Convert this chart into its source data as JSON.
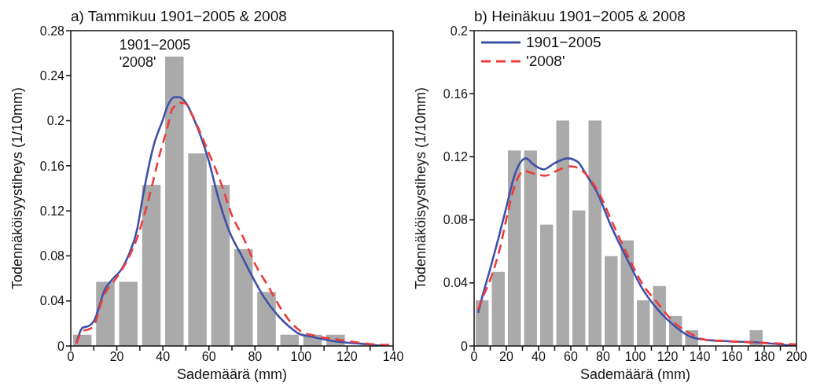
{
  "chart_data": [
    {
      "type": "histogram",
      "title": "a) Tammikuu 1901−2005 & 2008",
      "xlabel": "Sademäärä (mm)",
      "ylabel": "Todennäköisyystiheys (1/10mm)",
      "color": "#aaaaaa",
      "bins": [
        0,
        10,
        20,
        30,
        40,
        50,
        60,
        70,
        80,
        90,
        100,
        110,
        120,
        130,
        140
      ],
      "values": [
        0.01,
        0.057,
        0.057,
        0.143,
        0.257,
        0.171,
        0.143,
        0.086,
        0.048,
        0.01,
        0.01,
        0.01,
        0,
        0
      ],
      "series": [
        {
          "type": "line",
          "color": "#3f51a8",
          "line_style": "solid",
          "x": [
            2.5,
            5,
            8,
            10,
            15,
            18,
            22,
            25,
            29,
            31,
            36,
            40,
            42,
            45,
            47,
            50,
            54,
            60,
            64,
            69,
            74,
            79,
            84,
            90,
            95,
            99,
            105,
            115,
            126,
            136
          ],
          "values": [
            0.003,
            0.016,
            0.018,
            0.022,
            0.051,
            0.059,
            0.068,
            0.08,
            0.105,
            0.129,
            0.178,
            0.201,
            0.213,
            0.221,
            0.221,
            0.216,
            0.199,
            0.164,
            0.132,
            0.101,
            0.081,
            0.061,
            0.043,
            0.027,
            0.017,
            0.011,
            0.008,
            0.004,
            0.002,
            0
          ]
        },
        {
          "type": "line",
          "color": "#ee3b3b",
          "line_style": "dashed",
          "x": [
            2.5,
            5,
            8,
            10,
            14,
            20,
            24,
            29,
            34,
            39,
            42,
            44,
            48,
            50,
            53,
            59,
            65,
            70,
            75,
            80,
            86,
            91,
            96,
            100,
            106,
            115,
            125,
            136,
            140
          ],
          "values": [
            0.002,
            0.013,
            0.015,
            0.018,
            0.043,
            0.061,
            0.074,
            0.097,
            0.132,
            0.173,
            0.194,
            0.21,
            0.216,
            0.215,
            0.204,
            0.176,
            0.146,
            0.116,
            0.096,
            0.073,
            0.052,
            0.034,
            0.02,
            0.013,
            0.009,
            0.006,
            0.003,
            0.001,
            0.001
          ]
        }
      ],
      "annotations": [
        "1901−2005",
        "'2008'"
      ],
      "xlim": [
        0,
        140
      ],
      "xticks": [
        0,
        {
          "value": 10,
          "label": null
        },
        20,
        {
          "value": 30,
          "label": null
        },
        40,
        {
          "value": 50,
          "label": null
        },
        60,
        {
          "value": 70,
          "label": null
        },
        80,
        {
          "value": 90,
          "label": null
        },
        100,
        {
          "value": 110,
          "label": null
        },
        120,
        {
          "value": 130,
          "label": null
        },
        140
      ],
      "ylim": [
        0,
        0.28
      ],
      "yticks": [
        0,
        0.04,
        0.08,
        0.12,
        0.16,
        0.2,
        0.24,
        0.28
      ]
    },
    {
      "type": "histogram",
      "title": "b) Heinäkuu 1901−2005 & 2008",
      "xlabel": "Sademäärä (mm)",
      "ylabel": "Todennäköisyystiheys (1/10mm)",
      "color": "#aaaaaa",
      "bins": [
        0,
        10,
        20,
        30,
        40,
        50,
        60,
        70,
        80,
        90,
        100,
        110,
        120,
        130,
        140,
        150,
        160,
        170,
        180,
        190,
        200
      ],
      "values": [
        0.029,
        0.047,
        0.124,
        0.124,
        0.077,
        0.143,
        0.086,
        0.143,
        0.057,
        0.067,
        0.029,
        0.038,
        0.019,
        0.01,
        0,
        0,
        0,
        0.01,
        0,
        0
      ],
      "series": [
        {
          "name": "1901−2005",
          "type": "line",
          "color": "#3f51a8",
          "line_style": "solid",
          "x": [
            2.5,
            5,
            10,
            15,
            20,
            25,
            30,
            32,
            37,
            43,
            50,
            58,
            64,
            70,
            76,
            85,
            95,
            104,
            114,
            124,
            134,
            143,
            158,
            179,
            200
          ],
          "values": [
            0.021,
            0.031,
            0.049,
            0.068,
            0.088,
            0.108,
            0.118,
            0.119,
            0.115,
            0.112,
            0.116,
            0.119,
            0.117,
            0.108,
            0.098,
            0.076,
            0.055,
            0.037,
            0.023,
            0.013,
            0.006,
            0.004,
            0.003,
            0.002,
            0
          ]
        },
        {
          "name": "'2008'",
          "type": "line",
          "color": "#ee3b3b",
          "line_style": "dashed",
          "x": [
            2.5,
            5,
            10,
            16,
            21,
            25,
            31,
            38,
            44,
            53,
            60,
            66,
            71,
            78,
            85,
            95,
            104,
            114,
            124,
            134,
            143,
            158,
            179,
            200
          ],
          "values": [
            0.023,
            0.03,
            0.042,
            0.062,
            0.085,
            0.101,
            0.111,
            0.109,
            0.108,
            0.112,
            0.114,
            0.112,
            0.107,
            0.096,
            0.08,
            0.058,
            0.04,
            0.027,
            0.015,
            0.008,
            0.004,
            0.003,
            0.002,
            0.001
          ]
        }
      ],
      "legend": "top left",
      "xlim": [
        0,
        200
      ],
      "xticks": [
        0,
        {
          "value": 10,
          "label": null
        },
        20,
        {
          "value": 30,
          "label": null
        },
        40,
        {
          "value": 50,
          "label": null
        },
        60,
        {
          "value": 70,
          "label": null
        },
        80,
        {
          "value": 90,
          "label": null
        },
        100,
        {
          "value": 110,
          "label": null
        },
        120,
        {
          "value": 130,
          "label": null
        },
        140,
        {
          "value": 150,
          "label": null
        },
        160,
        {
          "value": 170,
          "label": null
        },
        180,
        {
          "value": 190,
          "label": null
        },
        200
      ],
      "ylim": [
        0,
        0.2
      ],
      "yticks": [
        0,
        0.04,
        0.08,
        0.12,
        0.16,
        0.2
      ]
    }
  ]
}
